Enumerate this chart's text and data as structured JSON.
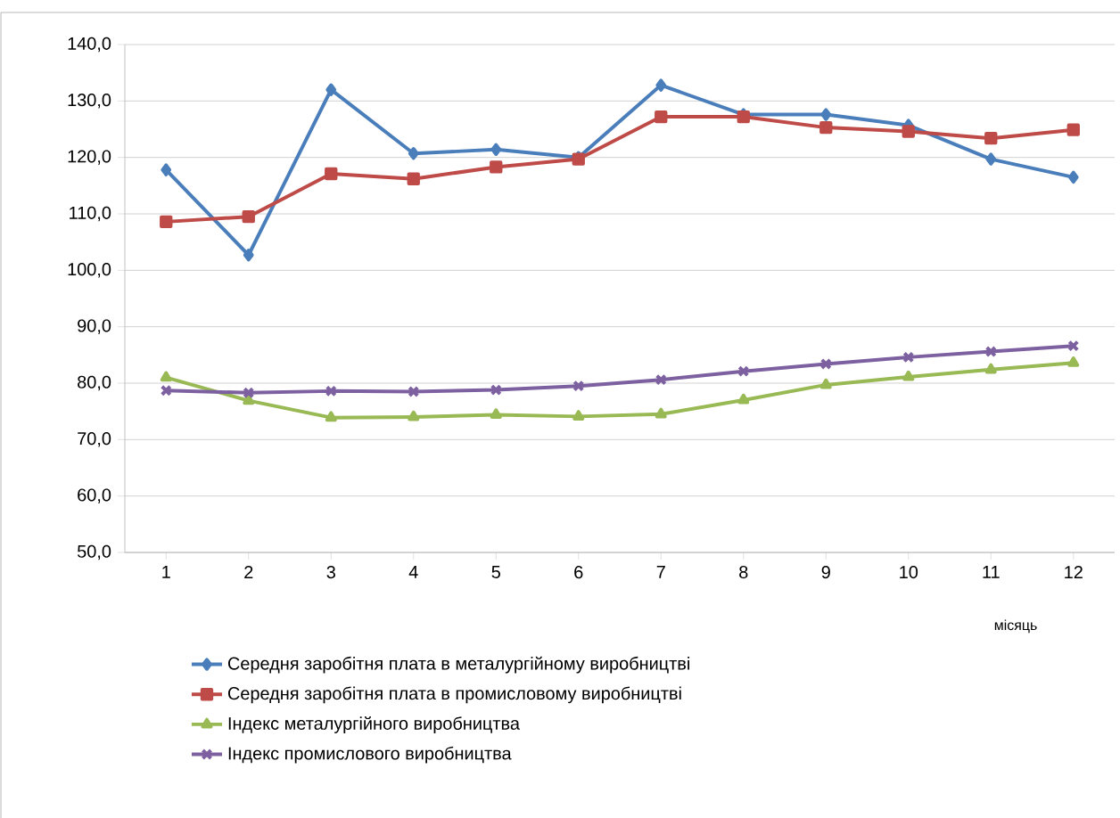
{
  "chart_data": {
    "type": "line",
    "xlabel": "місяць",
    "categories": [
      "1",
      "2",
      "3",
      "4",
      "5",
      "6",
      "7",
      "8",
      "9",
      "10",
      "11",
      "12"
    ],
    "series": [
      {
        "name": "Середня заробітня плата в металургійному виробництві",
        "color": "#4a7ebb",
        "marker": "diamond",
        "values": [
          117.8,
          102.7,
          132.0,
          120.7,
          121.4,
          120.0,
          132.8,
          127.6,
          127.6,
          125.7,
          119.7,
          116.5
        ]
      },
      {
        "name": "Середня заробітня плата в промисловому виробництві",
        "color": "#be4b48",
        "marker": "square",
        "values": [
          108.6,
          109.5,
          117.1,
          116.2,
          118.3,
          119.7,
          127.2,
          127.2,
          125.3,
          124.6,
          123.4,
          124.9
        ]
      },
      {
        "name": "Індекс металургійного виробництва",
        "color": "#98b954",
        "marker": "triangle",
        "values": [
          81.0,
          76.9,
          73.9,
          74.0,
          74.4,
          74.1,
          74.5,
          77.0,
          79.7,
          81.1,
          82.4,
          83.6
        ]
      },
      {
        "name": "Індекс промислового виробництва",
        "color": "#7d60a0",
        "marker": "cross",
        "values": [
          78.7,
          78.3,
          78.6,
          78.5,
          78.8,
          79.5,
          80.6,
          82.1,
          83.4,
          84.6,
          85.6,
          86.6
        ]
      }
    ],
    "ylim": [
      50,
      140
    ],
    "yticks": [
      {
        "value": 50,
        "label": "50,0"
      },
      {
        "value": 60,
        "label": "60,0"
      },
      {
        "value": 70,
        "label": "70,0"
      },
      {
        "value": 80,
        "label": "80,0"
      },
      {
        "value": 90,
        "label": "90,0"
      },
      {
        "value": 100,
        "label": "100,0"
      },
      {
        "value": 110,
        "label": "110,0"
      },
      {
        "value": 120,
        "label": "120,0"
      },
      {
        "value": 130,
        "label": "130,0"
      },
      {
        "value": 140,
        "label": "140,0"
      }
    ],
    "grid": "y",
    "legend": "bottom",
    "line_style": "solid"
  }
}
